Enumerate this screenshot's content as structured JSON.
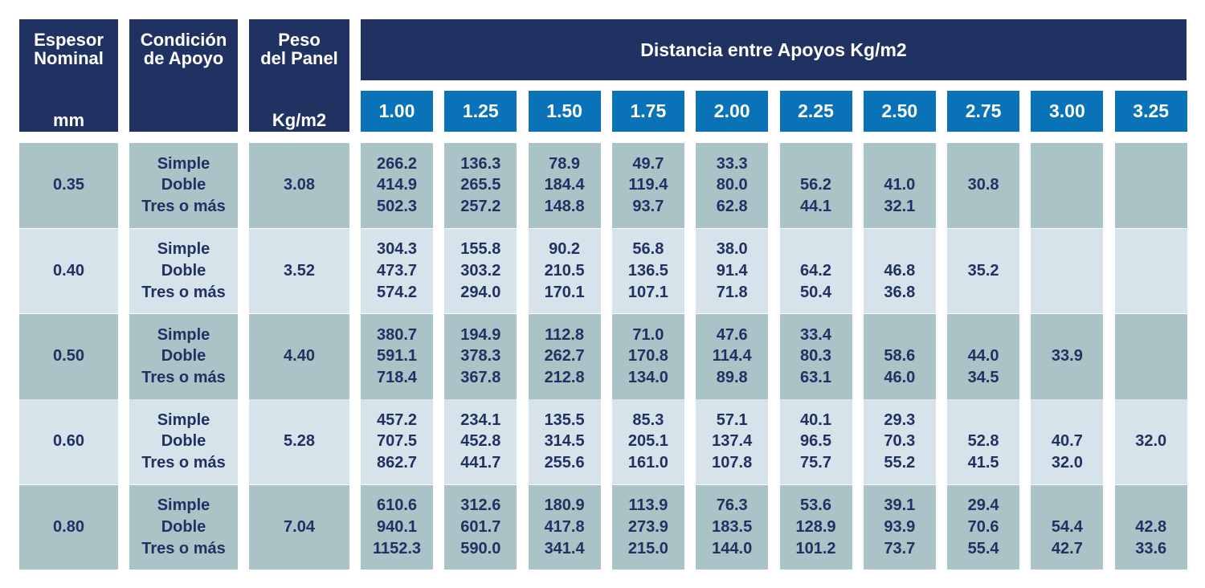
{
  "header": {
    "thickness": {
      "title": [
        "Espesor",
        "Nominal"
      ],
      "unit": "mm"
    },
    "condition": {
      "title": [
        "Condición",
        "de Apoyo"
      ]
    },
    "weight": {
      "title": [
        "Peso",
        "del Panel"
      ],
      "unit": "Kg/m2"
    },
    "distance": {
      "title": "Distancia entre Apoyos Kg/m2",
      "spans": [
        "1.00",
        "1.25",
        "1.50",
        "1.75",
        "2.00",
        "2.25",
        "2.50",
        "2.75",
        "3.00",
        "3.25"
      ]
    }
  },
  "rows": [
    {
      "thickness": "0.35",
      "conditions": [
        "Simple",
        "Doble",
        "Tres o más"
      ],
      "weight": "3.08",
      "loads": [
        [
          "266.2",
          "414.9",
          "502.3"
        ],
        [
          "136.3",
          "265.5",
          "257.2"
        ],
        [
          "78.9",
          "184.4",
          "148.8"
        ],
        [
          "49.7",
          "119.4",
          "93.7"
        ],
        [
          "33.3",
          "80.0",
          "62.8"
        ],
        [
          null,
          "56.2",
          "44.1"
        ],
        [
          null,
          "41.0",
          "32.1"
        ],
        [
          null,
          "30.8",
          null
        ],
        [
          null,
          null,
          null
        ],
        [
          null,
          null,
          null
        ]
      ]
    },
    {
      "thickness": "0.40",
      "conditions": [
        "Simple",
        "Doble",
        "Tres o más"
      ],
      "weight": "3.52",
      "loads": [
        [
          "304.3",
          "473.7",
          "574.2"
        ],
        [
          "155.8",
          "303.2",
          "294.0"
        ],
        [
          "90.2",
          "210.5",
          "170.1"
        ],
        [
          "56.8",
          "136.5",
          "107.1"
        ],
        [
          "38.0",
          "91.4",
          "71.8"
        ],
        [
          null,
          "64.2",
          "50.4"
        ],
        [
          null,
          "46.8",
          "36.8"
        ],
        [
          null,
          "35.2",
          null
        ],
        [
          null,
          null,
          null
        ],
        [
          null,
          null,
          null
        ]
      ]
    },
    {
      "thickness": "0.50",
      "conditions": [
        "Simple",
        "Doble",
        "Tres o más"
      ],
      "weight": "4.40",
      "loads": [
        [
          "380.7",
          "591.1",
          "718.4"
        ],
        [
          "194.9",
          "378.3",
          "367.8"
        ],
        [
          "112.8",
          "262.7",
          "212.8"
        ],
        [
          "71.0",
          "170.8",
          "134.0"
        ],
        [
          "47.6",
          "114.4",
          "89.8"
        ],
        [
          "33.4",
          "80.3",
          "63.1"
        ],
        [
          null,
          "58.6",
          "46.0"
        ],
        [
          null,
          "44.0",
          "34.5"
        ],
        [
          null,
          "33.9",
          null
        ],
        [
          null,
          null,
          null
        ]
      ]
    },
    {
      "thickness": "0.60",
      "conditions": [
        "Simple",
        "Doble",
        "Tres o más"
      ],
      "weight": "5.28",
      "loads": [
        [
          "457.2",
          "707.5",
          "862.7"
        ],
        [
          "234.1",
          "452.8",
          "441.7"
        ],
        [
          "135.5",
          "314.5",
          "255.6"
        ],
        [
          "85.3",
          "205.1",
          "161.0"
        ],
        [
          "57.1",
          "137.4",
          "107.8"
        ],
        [
          "40.1",
          "96.5",
          "75.7"
        ],
        [
          "29.3",
          "70.3",
          "55.2"
        ],
        [
          null,
          "52.8",
          "41.5"
        ],
        [
          null,
          "40.7",
          "32.0"
        ],
        [
          null,
          "32.0",
          null
        ]
      ]
    },
    {
      "thickness": "0.80",
      "conditions": [
        "Simple",
        "Doble",
        "Tres o más"
      ],
      "weight": "7.04",
      "loads": [
        [
          "610.6",
          "940.1",
          "1152.3"
        ],
        [
          "312.6",
          "601.7",
          "590.0"
        ],
        [
          "180.9",
          "417.8",
          "341.4"
        ],
        [
          "113.9",
          "273.9",
          "215.0"
        ],
        [
          "76.3",
          "183.5",
          "144.0"
        ],
        [
          "53.6",
          "128.9",
          "101.2"
        ],
        [
          "39.1",
          "93.9",
          "73.7"
        ],
        [
          "29.4",
          "70.6",
          "55.4"
        ],
        [
          null,
          "54.4",
          "42.7"
        ],
        [
          null,
          "42.8",
          "33.6"
        ]
      ]
    }
  ]
}
